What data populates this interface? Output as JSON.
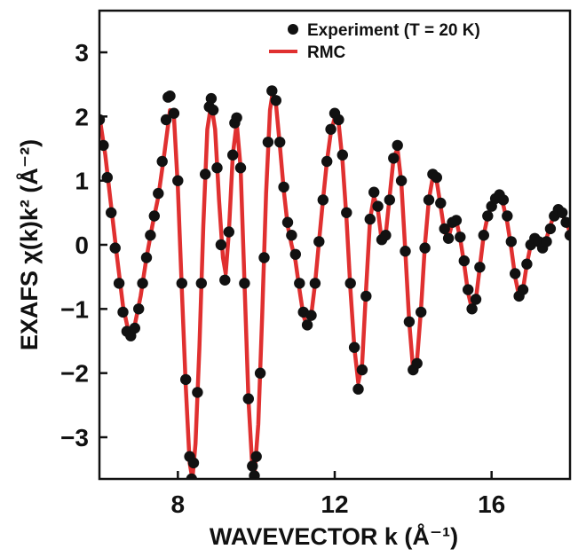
{
  "chart_data": {
    "type": "line",
    "xlabel": "WAVEVECTOR k (Å⁻¹)",
    "ylabel": "EXAFS χ(k)k² (Å⁻²)",
    "xlim": [
      6,
      18
    ],
    "ylim": [
      -3.65,
      3.65
    ],
    "x_ticks": [
      "8",
      "12",
      "16"
    ],
    "y_ticks": [
      "−3",
      "−2",
      "−1",
      "0",
      "1",
      "2",
      "3"
    ],
    "legend_position": "top-right",
    "colors": {
      "experiment": "#111111",
      "rmc": "#e03030"
    },
    "legend": {
      "experiment": "Experiment (T = 20 K)",
      "rmc": "RMC"
    },
    "series": [
      {
        "name": "Experiment (T = 20 K)",
        "style": "markers",
        "points": [
          [
            6.0,
            1.95
          ],
          [
            6.1,
            1.55
          ],
          [
            6.2,
            1.05
          ],
          [
            6.3,
            0.5
          ],
          [
            6.4,
            -0.05
          ],
          [
            6.5,
            -0.6
          ],
          [
            6.6,
            -1.05
          ],
          [
            6.7,
            -1.35
          ],
          [
            6.8,
            -1.42
          ],
          [
            6.9,
            -1.3
          ],
          [
            7.0,
            -1.0
          ],
          [
            7.1,
            -0.6
          ],
          [
            7.2,
            -0.2
          ],
          [
            7.3,
            0.15
          ],
          [
            7.4,
            0.45
          ],
          [
            7.5,
            0.8
          ],
          [
            7.6,
            1.3
          ],
          [
            7.7,
            1.95
          ],
          [
            7.75,
            2.3
          ],
          [
            7.8,
            2.32
          ],
          [
            7.9,
            2.05
          ],
          [
            8.0,
            1.0
          ],
          [
            8.1,
            -0.6
          ],
          [
            8.2,
            -2.1
          ],
          [
            8.3,
            -3.3
          ],
          [
            8.35,
            -3.65
          ],
          [
            8.4,
            -3.4
          ],
          [
            8.5,
            -2.3
          ],
          [
            8.6,
            -0.6
          ],
          [
            8.7,
            1.1
          ],
          [
            8.8,
            2.15
          ],
          [
            8.85,
            2.28
          ],
          [
            8.9,
            2.1
          ],
          [
            9.0,
            1.2
          ],
          [
            9.1,
            0.0
          ],
          [
            9.2,
            -0.55
          ],
          [
            9.3,
            0.2
          ],
          [
            9.4,
            1.4
          ],
          [
            9.45,
            1.9
          ],
          [
            9.5,
            1.98
          ],
          [
            9.6,
            1.2
          ],
          [
            9.7,
            -0.6
          ],
          [
            9.8,
            -2.4
          ],
          [
            9.9,
            -3.45
          ],
          [
            9.95,
            -3.6
          ],
          [
            10.0,
            -3.3
          ],
          [
            10.1,
            -2.0
          ],
          [
            10.2,
            -0.2
          ],
          [
            10.3,
            1.6
          ],
          [
            10.4,
            2.4
          ],
          [
            10.5,
            2.25
          ],
          [
            10.6,
            1.6
          ],
          [
            10.7,
            0.9
          ],
          [
            10.8,
            0.35
          ],
          [
            10.9,
            0.15
          ],
          [
            11.0,
            -0.15
          ],
          [
            11.1,
            -0.6
          ],
          [
            11.2,
            -1.05
          ],
          [
            11.3,
            -1.25
          ],
          [
            11.4,
            -1.1
          ],
          [
            11.5,
            -0.6
          ],
          [
            11.6,
            0.05
          ],
          [
            11.7,
            0.7
          ],
          [
            11.8,
            1.3
          ],
          [
            11.9,
            1.8
          ],
          [
            12.0,
            2.05
          ],
          [
            12.1,
            1.95
          ],
          [
            12.2,
            1.4
          ],
          [
            12.3,
            0.5
          ],
          [
            12.4,
            -0.6
          ],
          [
            12.5,
            -1.6
          ],
          [
            12.6,
            -2.25
          ],
          [
            12.7,
            -1.95
          ],
          [
            12.8,
            -0.8
          ],
          [
            12.9,
            0.4
          ],
          [
            13.0,
            0.82
          ],
          [
            13.1,
            0.6
          ],
          [
            13.2,
            0.08
          ],
          [
            13.3,
            0.15
          ],
          [
            13.4,
            0.7
          ],
          [
            13.5,
            1.35
          ],
          [
            13.6,
            1.55
          ],
          [
            13.7,
            1.0
          ],
          [
            13.8,
            -0.1
          ],
          [
            13.9,
            -1.2
          ],
          [
            14.0,
            -1.95
          ],
          [
            14.1,
            -1.85
          ],
          [
            14.2,
            -1.05
          ],
          [
            14.3,
            -0.05
          ],
          [
            14.4,
            0.7
          ],
          [
            14.5,
            1.1
          ],
          [
            14.6,
            1.05
          ],
          [
            14.7,
            0.65
          ],
          [
            14.8,
            0.25
          ],
          [
            14.9,
            0.1
          ],
          [
            15.0,
            0.35
          ],
          [
            15.1,
            0.38
          ],
          [
            15.2,
            0.12
          ],
          [
            15.3,
            -0.25
          ],
          [
            15.4,
            -0.7
          ],
          [
            15.5,
            -1.0
          ],
          [
            15.6,
            -0.85
          ],
          [
            15.7,
            -0.35
          ],
          [
            15.8,
            0.15
          ],
          [
            15.9,
            0.45
          ],
          [
            16.0,
            0.6
          ],
          [
            16.1,
            0.72
          ],
          [
            16.2,
            0.78
          ],
          [
            16.3,
            0.7
          ],
          [
            16.4,
            0.45
          ],
          [
            16.5,
            0.05
          ],
          [
            16.6,
            -0.45
          ],
          [
            16.7,
            -0.8
          ],
          [
            16.8,
            -0.7
          ],
          [
            16.9,
            -0.3
          ],
          [
            17.0,
            0.0
          ],
          [
            17.1,
            0.1
          ],
          [
            17.2,
            0.05
          ],
          [
            17.3,
            -0.05
          ],
          [
            17.4,
            0.05
          ],
          [
            17.5,
            0.25
          ],
          [
            17.6,
            0.45
          ],
          [
            17.7,
            0.55
          ],
          [
            17.8,
            0.5
          ],
          [
            17.9,
            0.35
          ],
          [
            18.0,
            0.15
          ]
        ]
      },
      {
        "name": "RMC",
        "style": "line",
        "points": [
          [
            6.0,
            2.0
          ],
          [
            6.15,
            1.4
          ],
          [
            6.3,
            0.6
          ],
          [
            6.45,
            -0.2
          ],
          [
            6.6,
            -0.95
          ],
          [
            6.75,
            -1.38
          ],
          [
            6.9,
            -1.25
          ],
          [
            7.05,
            -0.8
          ],
          [
            7.2,
            -0.2
          ],
          [
            7.35,
            0.3
          ],
          [
            7.5,
            0.75
          ],
          [
            7.65,
            1.4
          ],
          [
            7.8,
            2.1
          ],
          [
            7.9,
            2.0
          ],
          [
            8.0,
            0.9
          ],
          [
            8.1,
            -0.7
          ],
          [
            8.2,
            -2.2
          ],
          [
            8.3,
            -3.4
          ],
          [
            8.37,
            -3.65
          ],
          [
            8.45,
            -3.1
          ],
          [
            8.55,
            -1.6
          ],
          [
            8.65,
            0.3
          ],
          [
            8.75,
            1.8
          ],
          [
            8.85,
            2.2
          ],
          [
            8.95,
            1.8
          ],
          [
            9.05,
            0.7
          ],
          [
            9.15,
            -0.2
          ],
          [
            9.22,
            -0.45
          ],
          [
            9.3,
            0.2
          ],
          [
            9.4,
            1.4
          ],
          [
            9.5,
            1.9
          ],
          [
            9.6,
            1.2
          ],
          [
            9.7,
            -0.6
          ],
          [
            9.8,
            -2.4
          ],
          [
            9.9,
            -3.5
          ],
          [
            9.95,
            -3.6
          ],
          [
            10.05,
            -2.8
          ],
          [
            10.15,
            -1.1
          ],
          [
            10.25,
            0.8
          ],
          [
            10.35,
            2.1
          ],
          [
            10.42,
            2.38
          ],
          [
            10.5,
            2.2
          ],
          [
            10.6,
            1.55
          ],
          [
            10.7,
            0.85
          ],
          [
            10.8,
            0.3
          ],
          [
            10.9,
            0.0
          ],
          [
            11.0,
            -0.25
          ],
          [
            11.1,
            -0.7
          ],
          [
            11.2,
            -1.1
          ],
          [
            11.3,
            -1.28
          ],
          [
            11.4,
            -1.1
          ],
          [
            11.5,
            -0.6
          ],
          [
            11.6,
            0.05
          ],
          [
            11.7,
            0.7
          ],
          [
            11.8,
            1.3
          ],
          [
            11.9,
            1.75
          ],
          [
            12.0,
            1.98
          ],
          [
            12.1,
            1.9
          ],
          [
            12.2,
            1.3
          ],
          [
            12.3,
            0.4
          ],
          [
            12.4,
            -0.7
          ],
          [
            12.5,
            -1.6
          ],
          [
            12.6,
            -2.15
          ],
          [
            12.7,
            -1.85
          ],
          [
            12.8,
            -0.7
          ],
          [
            12.9,
            0.4
          ],
          [
            13.0,
            0.75
          ],
          [
            13.1,
            0.55
          ],
          [
            13.2,
            0.05
          ],
          [
            13.3,
            0.15
          ],
          [
            13.4,
            0.75
          ],
          [
            13.5,
            1.35
          ],
          [
            13.6,
            1.5
          ],
          [
            13.7,
            0.95
          ],
          [
            13.8,
            -0.1
          ],
          [
            13.9,
            -1.2
          ],
          [
            14.0,
            -1.95
          ],
          [
            14.1,
            -1.8
          ],
          [
            14.2,
            -1.0
          ],
          [
            14.3,
            0.0
          ],
          [
            14.4,
            0.7
          ],
          [
            14.5,
            1.05
          ],
          [
            14.6,
            1.0
          ],
          [
            14.7,
            0.6
          ],
          [
            14.8,
            0.2
          ],
          [
            14.9,
            0.1
          ],
          [
            15.0,
            0.35
          ],
          [
            15.1,
            0.38
          ],
          [
            15.2,
            0.1
          ],
          [
            15.3,
            -0.3
          ],
          [
            15.4,
            -0.75
          ],
          [
            15.5,
            -1.0
          ],
          [
            15.6,
            -0.85
          ],
          [
            15.7,
            -0.35
          ],
          [
            15.8,
            0.15
          ],
          [
            15.9,
            0.45
          ],
          [
            16.0,
            0.6
          ],
          [
            16.1,
            0.68
          ],
          [
            16.2,
            0.72
          ],
          [
            16.3,
            0.62
          ],
          [
            16.4,
            0.35
          ],
          [
            16.5,
            -0.05
          ],
          [
            16.6,
            -0.5
          ],
          [
            16.7,
            -0.8
          ],
          [
            16.8,
            -0.7
          ],
          [
            16.9,
            -0.3
          ],
          [
            17.0,
            0.0
          ],
          [
            17.1,
            0.12
          ],
          [
            17.2,
            0.1
          ],
          [
            17.3,
            0.0
          ],
          [
            17.4,
            0.1
          ],
          [
            17.5,
            0.3
          ],
          [
            17.6,
            0.48
          ],
          [
            17.7,
            0.55
          ],
          [
            17.8,
            0.48
          ],
          [
            17.9,
            0.35
          ],
          [
            18.0,
            0.2
          ]
        ]
      }
    ]
  }
}
